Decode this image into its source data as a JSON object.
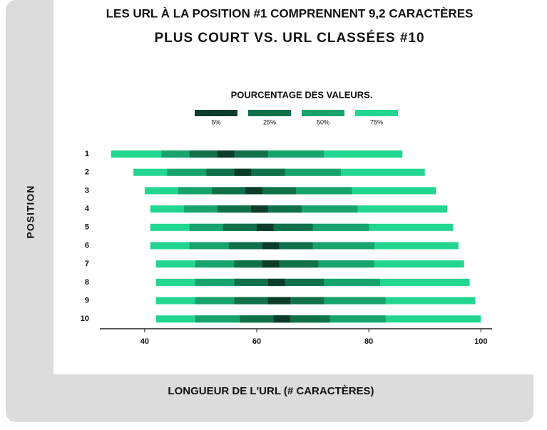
{
  "chart_data": {
    "type": "range-bar",
    "title": "LES URL À LA POSITION #1 COMPRENNENT 9,2 CARACTÈRES",
    "subtitle": "PLUS COURT VS. URL CLASSÉES #10",
    "legend_title": "POURCENTAGE DES VALEURS.",
    "x_label": "LONGUEUR DE L'URL (# CARACTÈRES)",
    "y_label": "POSITION",
    "categories": [
      "1",
      "2",
      "3",
      "4",
      "5",
      "6",
      "7",
      "8",
      "9",
      "10"
    ],
    "series": [
      {
        "name": "5%",
        "color": "#0b3d2a",
        "values": [
          [
            53,
            56
          ],
          [
            56,
            59
          ],
          [
            58,
            61
          ],
          [
            59,
            62
          ],
          [
            60,
            63
          ],
          [
            61,
            64
          ],
          [
            61,
            64
          ],
          [
            62,
            65
          ],
          [
            62,
            66
          ],
          [
            63,
            66
          ]
        ]
      },
      {
        "name": "25%",
        "color": "#10704a",
        "values": [
          [
            48,
            62
          ],
          [
            51,
            65
          ],
          [
            52,
            67
          ],
          [
            53,
            68
          ],
          [
            54,
            70
          ],
          [
            55,
            70
          ],
          [
            56,
            71
          ],
          [
            56,
            72
          ],
          [
            56,
            72
          ],
          [
            57,
            73
          ]
        ]
      },
      {
        "name": "50%",
        "color": "#17a36c",
        "values": [
          [
            43,
            72
          ],
          [
            44,
            75
          ],
          [
            46,
            77
          ],
          [
            47,
            78
          ],
          [
            48,
            80
          ],
          [
            48,
            81
          ],
          [
            49,
            81
          ],
          [
            49,
            82
          ],
          [
            49,
            83
          ],
          [
            49,
            83
          ]
        ]
      },
      {
        "name": "75%",
        "color": "#22d690",
        "values": [
          [
            34,
            86
          ],
          [
            38,
            90
          ],
          [
            40,
            92
          ],
          [
            41,
            94
          ],
          [
            41,
            95
          ],
          [
            41,
            96
          ],
          [
            42,
            97
          ],
          [
            42,
            98
          ],
          [
            42,
            99
          ],
          [
            42,
            100
          ]
        ]
      }
    ],
    "xlim": [
      32,
      102
    ],
    "xticks": [
      40,
      60,
      80,
      100
    ]
  }
}
